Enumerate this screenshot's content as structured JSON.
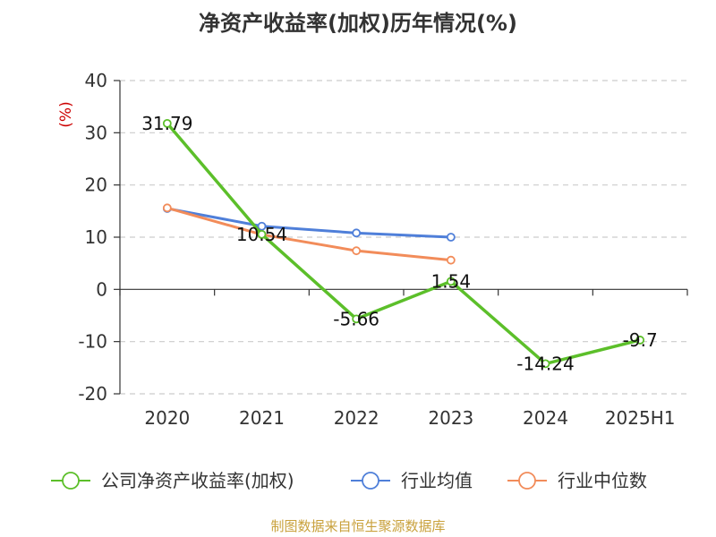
{
  "header": {
    "title": "净资产收益率(加权)历年情况(%)"
  },
  "footer": {
    "source": "制图数据来自恒生聚源数据库"
  },
  "chart_data": {
    "type": "line",
    "title": "净资产收益率(加权)历年情况(%)",
    "ylabel": "(%)",
    "xlabel": "",
    "categories": [
      "2020",
      "2021",
      "2022",
      "2023",
      "2024",
      "2025H1"
    ],
    "ylim": [
      -20,
      40
    ],
    "yticks": [
      40,
      30,
      20,
      10,
      0,
      -10,
      -20
    ],
    "ytick_labels": [
      "40",
      "30",
      "20",
      "10",
      "0",
      "-10",
      "-20"
    ],
    "grid": true,
    "legend_position": "bottom",
    "series": [
      {
        "name": "公司净资产收益率(加权)",
        "color": "#5cbf2a",
        "values": [
          31.79,
          10.54,
          -5.66,
          1.54,
          -14.24,
          -9.7
        ],
        "labels": [
          "31.79",
          "10.54",
          "-5.66",
          "1.54",
          "-14.24",
          "-9.7"
        ]
      },
      {
        "name": "行业均值",
        "color": "#4f7fd9",
        "values": [
          15.5,
          12.1,
          10.8,
          10.0,
          null,
          null
        ]
      },
      {
        "name": "行业中位数",
        "color": "#f28c5a",
        "values": [
          15.6,
          10.5,
          7.4,
          5.6,
          null,
          null
        ]
      }
    ],
    "ylabel_color": "#cc0000"
  }
}
